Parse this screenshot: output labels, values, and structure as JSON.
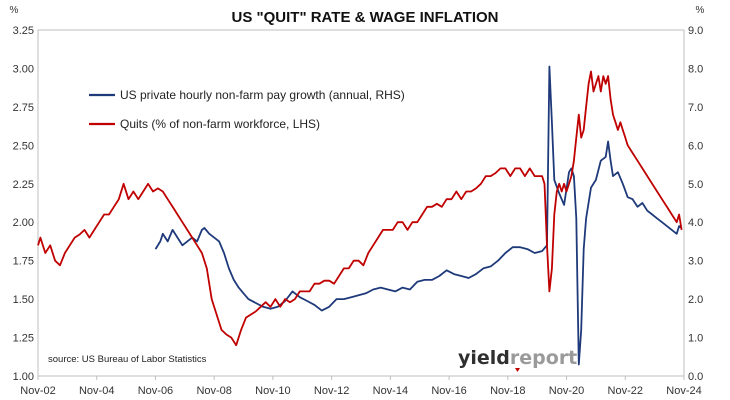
{
  "chart_data": {
    "type": "line",
    "title": "US \"QUIT\" RATE & WAGE INFLATION",
    "left_unit": "%",
    "right_unit": "%",
    "source": "source: US Bureau of Labor Statistics",
    "logo": {
      "part1": "yield",
      "part2": "report"
    },
    "x_range": [
      "2002-11",
      "2024-11"
    ],
    "x_ticks": [
      "Nov-02",
      "Nov-04",
      "Nov-06",
      "Nov-08",
      "Nov-10",
      "Nov-12",
      "Nov-14",
      "Nov-16",
      "Nov-18",
      "Nov-20",
      "Nov-22",
      "Nov-24"
    ],
    "y_left": {
      "range": [
        1.0,
        3.25
      ],
      "ticks": [
        "1.00",
        "1.25",
        "1.50",
        "1.75",
        "2.00",
        "2.25",
        "2.50",
        "2.75",
        "3.00",
        "3.25"
      ]
    },
    "y_right": {
      "range": [
        0.0,
        9.0
      ],
      "ticks": [
        "0.0",
        "1.0",
        "2.0",
        "3.0",
        "4.0",
        "5.0",
        "6.0",
        "7.0",
        "8.0",
        "9.0"
      ]
    },
    "grid": false,
    "legend_position": "top-left",
    "series": [
      {
        "name": "US private hourly non-farm pay growth (annual, RHS)",
        "axis": "right",
        "color": "#1f3a7a",
        "points": [
          [
            "2006-11",
            3.3
          ],
          [
            "2007-01",
            3.5
          ],
          [
            "2007-02",
            3.7
          ],
          [
            "2007-04",
            3.5
          ],
          [
            "2007-06",
            3.8
          ],
          [
            "2007-08",
            3.6
          ],
          [
            "2007-10",
            3.4
          ],
          [
            "2007-12",
            3.5
          ],
          [
            "2008-02",
            3.6
          ],
          [
            "2008-04",
            3.5
          ],
          [
            "2008-06",
            3.8
          ],
          [
            "2008-07",
            3.85
          ],
          [
            "2008-09",
            3.7
          ],
          [
            "2008-11",
            3.6
          ],
          [
            "2009-01",
            3.5
          ],
          [
            "2009-03",
            3.2
          ],
          [
            "2009-05",
            2.8
          ],
          [
            "2009-07",
            2.5
          ],
          [
            "2009-09",
            2.3
          ],
          [
            "2009-11",
            2.15
          ],
          [
            "2010-01",
            2.0
          ],
          [
            "2010-04",
            1.9
          ],
          [
            "2010-07",
            1.8
          ],
          [
            "2010-10",
            1.75
          ],
          [
            "2011-01",
            1.8
          ],
          [
            "2011-04",
            1.95
          ],
          [
            "2011-07",
            2.2
          ],
          [
            "2011-10",
            2.05
          ],
          [
            "2012-01",
            1.95
          ],
          [
            "2012-04",
            1.85
          ],
          [
            "2012-07",
            1.7
          ],
          [
            "2012-10",
            1.8
          ],
          [
            "2013-01",
            2.0
          ],
          [
            "2013-04",
            2.0
          ],
          [
            "2013-07",
            2.05
          ],
          [
            "2013-10",
            2.1
          ],
          [
            "2014-01",
            2.15
          ],
          [
            "2014-04",
            2.25
          ],
          [
            "2014-07",
            2.3
          ],
          [
            "2014-10",
            2.25
          ],
          [
            "2015-01",
            2.2
          ],
          [
            "2015-04",
            2.3
          ],
          [
            "2015-07",
            2.25
          ],
          [
            "2015-10",
            2.45
          ],
          [
            "2016-01",
            2.5
          ],
          [
            "2016-04",
            2.5
          ],
          [
            "2016-07",
            2.6
          ],
          [
            "2016-10",
            2.75
          ],
          [
            "2017-01",
            2.65
          ],
          [
            "2017-04",
            2.6
          ],
          [
            "2017-07",
            2.55
          ],
          [
            "2017-10",
            2.65
          ],
          [
            "2018-01",
            2.8
          ],
          [
            "2018-04",
            2.85
          ],
          [
            "2018-07",
            3.0
          ],
          [
            "2018-10",
            3.2
          ],
          [
            "2019-01",
            3.35
          ],
          [
            "2019-04",
            3.35
          ],
          [
            "2019-07",
            3.3
          ],
          [
            "2019-10",
            3.2
          ],
          [
            "2020-01",
            3.25
          ],
          [
            "2020-03",
            3.4
          ],
          [
            "2020-04",
            8.05
          ],
          [
            "2020-05",
            6.6
          ],
          [
            "2020-06",
            5.1
          ],
          [
            "2020-08",
            4.75
          ],
          [
            "2020-10",
            4.45
          ],
          [
            "2020-12",
            5.3
          ],
          [
            "2021-01",
            5.4
          ],
          [
            "2021-02",
            5.2
          ],
          [
            "2021-03",
            4.1
          ],
          [
            "2021-04",
            0.3
          ],
          [
            "2021-05",
            1.2
          ],
          [
            "2021-06",
            3.3
          ],
          [
            "2021-07",
            4.1
          ],
          [
            "2021-09",
            4.9
          ],
          [
            "2021-11",
            5.1
          ],
          [
            "2022-01",
            5.6
          ],
          [
            "2022-03",
            5.7
          ],
          [
            "2022-04",
            6.1
          ],
          [
            "2022-05",
            5.6
          ],
          [
            "2022-06",
            5.2
          ],
          [
            "2022-08",
            5.3
          ],
          [
            "2022-10",
            5.0
          ],
          [
            "2022-12",
            4.65
          ],
          [
            "2023-02",
            4.6
          ],
          [
            "2023-04",
            4.4
          ],
          [
            "2023-06",
            4.5
          ],
          [
            "2023-08",
            4.3
          ],
          [
            "2023-10",
            4.2
          ],
          [
            "2023-12",
            4.1
          ],
          [
            "2024-02",
            4.0
          ],
          [
            "2024-04",
            3.9
          ],
          [
            "2024-06",
            3.8
          ],
          [
            "2024-08",
            3.7
          ],
          [
            "2024-09",
            3.9
          ],
          [
            "2024-10",
            3.85
          ]
        ]
      },
      {
        "name": "Quits (% of non-farm workforce, LHS)",
        "axis": "left",
        "color": "#c00000",
        "points": [
          [
            "2002-11",
            1.85
          ],
          [
            "2002-12",
            1.9
          ],
          [
            "2003-02",
            1.8
          ],
          [
            "2003-04",
            1.85
          ],
          [
            "2003-06",
            1.75
          ],
          [
            "2003-08",
            1.72
          ],
          [
            "2003-10",
            1.8
          ],
          [
            "2003-12",
            1.85
          ],
          [
            "2004-02",
            1.9
          ],
          [
            "2004-04",
            1.92
          ],
          [
            "2004-06",
            1.95
          ],
          [
            "2004-08",
            1.9
          ],
          [
            "2004-10",
            1.95
          ],
          [
            "2004-12",
            2.0
          ],
          [
            "2005-02",
            2.05
          ],
          [
            "2005-04",
            2.05
          ],
          [
            "2005-06",
            2.1
          ],
          [
            "2005-08",
            2.15
          ],
          [
            "2005-10",
            2.25
          ],
          [
            "2005-12",
            2.15
          ],
          [
            "2006-02",
            2.2
          ],
          [
            "2006-04",
            2.15
          ],
          [
            "2006-06",
            2.2
          ],
          [
            "2006-08",
            2.25
          ],
          [
            "2006-10",
            2.2
          ],
          [
            "2006-12",
            2.22
          ],
          [
            "2007-02",
            2.2
          ],
          [
            "2007-04",
            2.15
          ],
          [
            "2007-06",
            2.1
          ],
          [
            "2007-08",
            2.05
          ],
          [
            "2007-10",
            2.0
          ],
          [
            "2007-12",
            1.95
          ],
          [
            "2008-02",
            1.9
          ],
          [
            "2008-04",
            1.85
          ],
          [
            "2008-06",
            1.8
          ],
          [
            "2008-08",
            1.7
          ],
          [
            "2008-10",
            1.5
          ],
          [
            "2008-12",
            1.4
          ],
          [
            "2009-02",
            1.3
          ],
          [
            "2009-04",
            1.27
          ],
          [
            "2009-06",
            1.25
          ],
          [
            "2009-08",
            1.2
          ],
          [
            "2009-10",
            1.3
          ],
          [
            "2009-12",
            1.38
          ],
          [
            "2010-02",
            1.4
          ],
          [
            "2010-04",
            1.42
          ],
          [
            "2010-06",
            1.45
          ],
          [
            "2010-08",
            1.48
          ],
          [
            "2010-10",
            1.45
          ],
          [
            "2010-12",
            1.5
          ],
          [
            "2011-02",
            1.45
          ],
          [
            "2011-04",
            1.5
          ],
          [
            "2011-06",
            1.48
          ],
          [
            "2011-08",
            1.5
          ],
          [
            "2011-10",
            1.55
          ],
          [
            "2011-12",
            1.55
          ],
          [
            "2012-02",
            1.55
          ],
          [
            "2012-04",
            1.6
          ],
          [
            "2012-06",
            1.6
          ],
          [
            "2012-08",
            1.62
          ],
          [
            "2012-10",
            1.62
          ],
          [
            "2012-12",
            1.6
          ],
          [
            "2013-02",
            1.65
          ],
          [
            "2013-04",
            1.7
          ],
          [
            "2013-06",
            1.7
          ],
          [
            "2013-08",
            1.75
          ],
          [
            "2013-10",
            1.75
          ],
          [
            "2013-12",
            1.72
          ],
          [
            "2014-02",
            1.8
          ],
          [
            "2014-04",
            1.85
          ],
          [
            "2014-06",
            1.9
          ],
          [
            "2014-08",
            1.95
          ],
          [
            "2014-10",
            1.95
          ],
          [
            "2014-12",
            1.95
          ],
          [
            "2015-02",
            2.0
          ],
          [
            "2015-04",
            2.0
          ],
          [
            "2015-06",
            1.95
          ],
          [
            "2015-08",
            2.0
          ],
          [
            "2015-10",
            2.0
          ],
          [
            "2015-12",
            2.05
          ],
          [
            "2016-02",
            2.1
          ],
          [
            "2016-04",
            2.1
          ],
          [
            "2016-06",
            2.12
          ],
          [
            "2016-08",
            2.1
          ],
          [
            "2016-10",
            2.15
          ],
          [
            "2016-12",
            2.15
          ],
          [
            "2017-02",
            2.2
          ],
          [
            "2017-04",
            2.15
          ],
          [
            "2017-06",
            2.2
          ],
          [
            "2017-08",
            2.2
          ],
          [
            "2017-10",
            2.22
          ],
          [
            "2017-12",
            2.25
          ],
          [
            "2018-02",
            2.3
          ],
          [
            "2018-04",
            2.3
          ],
          [
            "2018-06",
            2.32
          ],
          [
            "2018-08",
            2.35
          ],
          [
            "2018-10",
            2.35
          ],
          [
            "2018-12",
            2.3
          ],
          [
            "2019-02",
            2.35
          ],
          [
            "2019-04",
            2.35
          ],
          [
            "2019-06",
            2.3
          ],
          [
            "2019-08",
            2.35
          ],
          [
            "2019-10",
            2.3
          ],
          [
            "2019-12",
            2.3
          ],
          [
            "2020-01",
            2.3
          ],
          [
            "2020-02",
            2.25
          ],
          [
            "2020-03",
            1.85
          ],
          [
            "2020-04",
            1.55
          ],
          [
            "2020-05",
            1.7
          ],
          [
            "2020-06",
            2.05
          ],
          [
            "2020-07",
            2.2
          ],
          [
            "2020-08",
            2.25
          ],
          [
            "2020-09",
            2.2
          ],
          [
            "2020-10",
            2.25
          ],
          [
            "2020-11",
            2.2
          ],
          [
            "2020-12",
            2.25
          ],
          [
            "2021-01",
            2.3
          ],
          [
            "2021-02",
            2.4
          ],
          [
            "2021-03",
            2.55
          ],
          [
            "2021-04",
            2.7
          ],
          [
            "2021-05",
            2.55
          ],
          [
            "2021-06",
            2.6
          ],
          [
            "2021-07",
            2.75
          ],
          [
            "2021-08",
            2.9
          ],
          [
            "2021-09",
            2.98
          ],
          [
            "2021-10",
            2.85
          ],
          [
            "2021-11",
            2.9
          ],
          [
            "2021-12",
            2.95
          ],
          [
            "2022-01",
            2.85
          ],
          [
            "2022-02",
            2.95
          ],
          [
            "2022-03",
            2.9
          ],
          [
            "2022-04",
            2.95
          ],
          [
            "2022-05",
            2.8
          ],
          [
            "2022-06",
            2.7
          ],
          [
            "2022-07",
            2.65
          ],
          [
            "2022-08",
            2.6
          ],
          [
            "2022-09",
            2.65
          ],
          [
            "2022-10",
            2.6
          ],
          [
            "2022-11",
            2.55
          ],
          [
            "2022-12",
            2.5
          ],
          [
            "2023-02",
            2.45
          ],
          [
            "2023-04",
            2.4
          ],
          [
            "2023-06",
            2.35
          ],
          [
            "2023-08",
            2.3
          ],
          [
            "2023-10",
            2.25
          ],
          [
            "2023-12",
            2.2
          ],
          [
            "2024-02",
            2.15
          ],
          [
            "2024-04",
            2.1
          ],
          [
            "2024-06",
            2.05
          ],
          [
            "2024-08",
            2.0
          ],
          [
            "2024-09",
            2.05
          ],
          [
            "2024-10",
            1.95
          ]
        ]
      }
    ]
  }
}
